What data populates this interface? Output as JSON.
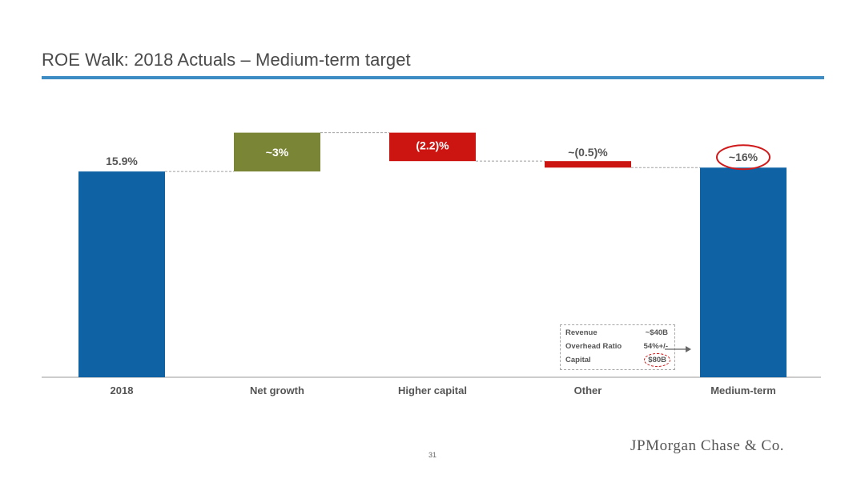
{
  "slide": {
    "title": "ROE Walk: 2018 Actuals – Medium-term target",
    "page_number": "31",
    "logo_text": "JPMorgan Chase & Co."
  },
  "colors": {
    "base": "#0f62a4",
    "increase": "#7b8536",
    "decrease": "#cc1410",
    "title_rule": "#3d8cc4",
    "highlight_ring": "#d0191a"
  },
  "chart_data": {
    "type": "bar",
    "subtype": "waterfall",
    "categories": [
      "2018",
      "Net growth",
      "Higher capital",
      "Other",
      "Medium-term"
    ],
    "bars": [
      {
        "category": "2018",
        "kind": "total",
        "start": 0,
        "end": 15.9,
        "label": "15.9%"
      },
      {
        "category": "Net growth",
        "kind": "increase",
        "start": 15.9,
        "end": 18.9,
        "label": "~3%"
      },
      {
        "category": "Higher capital",
        "kind": "decrease",
        "start": 18.9,
        "end": 16.7,
        "label": "(2.2)%"
      },
      {
        "category": "Other",
        "kind": "decrease",
        "start": 16.7,
        "end": 16.2,
        "label": "~(0.5)%"
      },
      {
        "category": "Medium-term",
        "kind": "total",
        "start": 0,
        "end": 16.2,
        "label": "~16%",
        "highlighted": true
      }
    ],
    "ylim": [
      0,
      19
    ],
    "grid": false,
    "xlabel": "",
    "ylabel": ""
  },
  "callout": {
    "rows": [
      {
        "key": "Revenue",
        "value": "~$40B"
      },
      {
        "key": "Overhead Ratio",
        "value": "54%+/-"
      },
      {
        "key": "Capital",
        "value": "$80B"
      }
    ]
  }
}
